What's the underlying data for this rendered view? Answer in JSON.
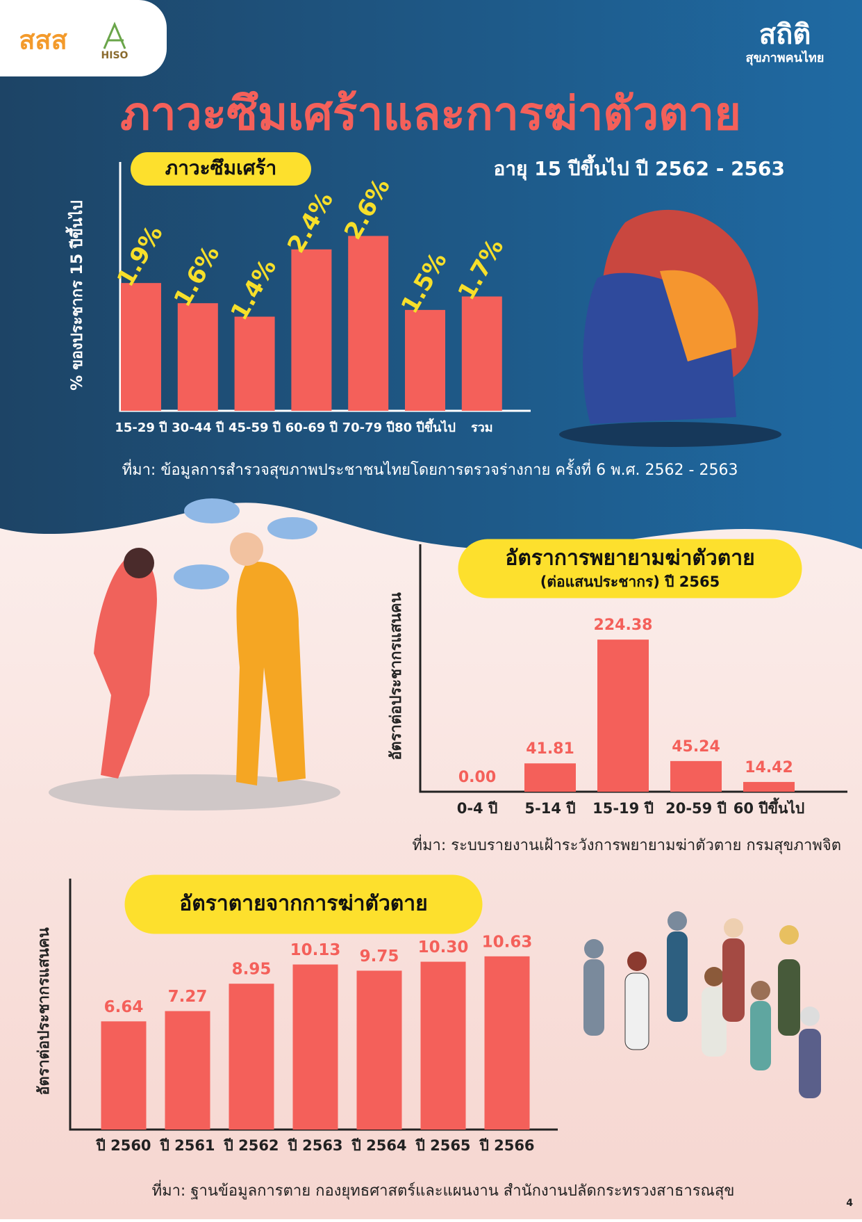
{
  "title": "ภาวะซึมเศร้าและการฆ่าตัวตาย",
  "subtitle": "อายุ 15 ปีขึ้นไป ปี 2562 - 2563",
  "logos": [
    "สสส",
    "HISO",
    "สถิติ",
    "สุขภาพคนไทย"
  ],
  "page_number": "4",
  "chart_data": [
    {
      "type": "bar",
      "title": "ภาวะซึมเศร้า",
      "y_label": "% ของประชากร 15 ปีขึ้นไป",
      "categories": [
        "15-29 ปี",
        "30-44 ปี",
        "45-59 ปี",
        "60-69 ปี",
        "70-79 ปี",
        "80 ปีขึ้นไป",
        "รวม"
      ],
      "values": [
        1.9,
        1.6,
        1.4,
        2.4,
        2.6,
        1.5,
        1.7
      ],
      "value_labels": [
        "1.9%",
        "1.6%",
        "1.4%",
        "2.4%",
        "2.6%",
        "1.5%",
        "1.7%"
      ],
      "color": "#f4605a",
      "label_color": "#f7df2a",
      "ylim": [
        0,
        3.7
      ],
      "source": "ที่มา: ข้อมูลการสำรวจสุขภาพประชาชนไทยโดยการตรวจร่างกาย ครั้งที่ 6 พ.ศ. 2562 - 2563"
    },
    {
      "type": "bar",
      "title": "อัตราการพยายามฆ่าตัวตาย",
      "subtitle": "(ต่อแสนประชากร) ปี 2565",
      "y_label": "อัตราต่อประชากรแสนคน",
      "categories": [
        "0-4 ปี",
        "5-14 ปี",
        "15-19 ปี",
        "20-59 ปี",
        "60 ปีขึ้นไป"
      ],
      "values": [
        0,
        41.81,
        224.38,
        45.24,
        14.42
      ],
      "value_labels": [
        "0.00",
        "41.81",
        "224.38",
        "45.24",
        "14.42"
      ],
      "color": "#f4605a",
      "label_color": "#f4605a",
      "ylim": [
        0,
        365
      ],
      "source": "ที่มา: ระบบรายงานเฝ้าระวังการพยายามฆ่าตัวตาย กรมสุขภาพจิต"
    },
    {
      "type": "bar",
      "title": "อัตราตายจากการฆ่าตัวตาย",
      "y_label": "อัตราต่อประชากรแสนคน",
      "categories": [
        "ปี 2560",
        "ปี 2561",
        "ปี 2562",
        "ปี 2563",
        "ปี 2564",
        "ปี 2565",
        "ปี 2566"
      ],
      "values": [
        6.64,
        7.27,
        8.95,
        10.13,
        9.75,
        10.3,
        10.63
      ],
      "value_labels": [
        "6.64",
        "7.27",
        "8.95",
        "10.13",
        "9.75",
        "10.30",
        "10.63"
      ],
      "color": "#f4605a",
      "label_color": "#f4605a",
      "ylim": [
        0,
        15.4
      ],
      "source": "ที่มา: ฐานข้อมูลการตาย กองยุทธศาสตร์และแผนงาน สำนักงานปลัดกระทรวงสาธารณสุข"
    }
  ]
}
